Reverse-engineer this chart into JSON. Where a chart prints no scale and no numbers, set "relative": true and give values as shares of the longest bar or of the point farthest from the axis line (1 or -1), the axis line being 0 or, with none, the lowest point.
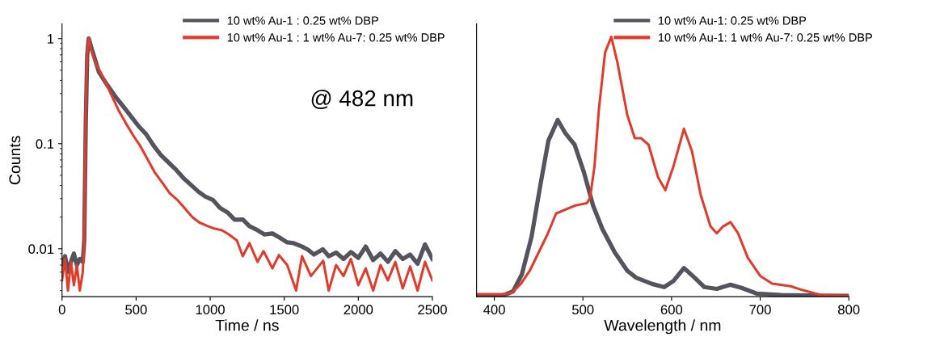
{
  "chart_data": [
    {
      "type": "line",
      "xlabel": "Time / ns",
      "ylabel": "Counts",
      "log": "y",
      "xlim": [
        0,
        2500
      ],
      "xticks": [
        0,
        500,
        1000,
        1500,
        2000,
        2500
      ],
      "ylim": [
        0.0035,
        1.38
      ],
      "yticks": [
        0.01,
        0.1,
        1
      ],
      "legend": "top right",
      "grid": false,
      "annotations": [
        "@ 482 nm"
      ],
      "series": [
        {
          "name": "10 wt% Au-1 : 0.25 wt% DBP",
          "color": "#55535e",
          "x": [
            0,
            20,
            40,
            60,
            80,
            100,
            120,
            140,
            150,
            160,
            170,
            180,
            200,
            249,
            300,
            369,
            420,
            468,
            520,
            568,
            620,
            667,
            720,
            767,
            820,
            866,
            920,
            966,
            1020,
            1066,
            1120,
            1165,
            1220,
            1265,
            1320,
            1365,
            1420,
            1464,
            1520,
            1564,
            1620,
            1660,
            1700,
            1760,
            1800,
            1850,
            1900,
            1950,
            2000,
            2050,
            2100,
            2150,
            2200,
            2250,
            2300,
            2350,
            2400,
            2450,
            2500
          ],
          "values": [
            0.007,
            0.0085,
            0.006,
            0.0075,
            0.009,
            0.007,
            0.008,
            0.0075,
            0.012,
            0.15,
            0.7,
            1.0,
            0.8,
            0.48,
            0.37,
            0.27,
            0.22,
            0.18,
            0.145,
            0.123,
            0.095,
            0.078,
            0.066,
            0.057,
            0.047,
            0.041,
            0.035,
            0.0315,
            0.029,
            0.0245,
            0.022,
            0.0189,
            0.019,
            0.0164,
            0.015,
            0.0137,
            0.014,
            0.0129,
            0.0115,
            0.0113,
            0.0105,
            0.0098,
            0.0088,
            0.0099,
            0.0085,
            0.0092,
            0.008,
            0.0093,
            0.0082,
            0.0105,
            0.0078,
            0.009,
            0.0075,
            0.0095,
            0.008,
            0.0088,
            0.0072,
            0.011,
            0.008
          ]
        },
        {
          "name": "10 wt% Au-1 : 1 wt% Au-7: 0.25 wt% DBP",
          "color": "#e03c2c",
          "x": [
            0,
            20,
            40,
            60,
            80,
            100,
            120,
            140,
            150,
            160,
            170,
            180,
            200,
            229,
            280,
            329,
            380,
            428,
            480,
            528,
            580,
            627,
            680,
            727,
            780,
            826,
            880,
            926,
            980,
            1026,
            1080,
            1125,
            1180,
            1220,
            1265,
            1320,
            1360,
            1420,
            1464,
            1520,
            1580,
            1620,
            1680,
            1763,
            1800,
            1850,
            1900,
            1950,
            2000,
            2050,
            2100,
            2150,
            2200,
            2250,
            2300,
            2350,
            2400,
            2450,
            2500
          ],
          "values": [
            0.005,
            0.008,
            0.004,
            0.0075,
            0.0045,
            0.007,
            0.004,
            0.006,
            0.012,
            0.2,
            0.75,
            1.0,
            0.75,
            0.58,
            0.42,
            0.3,
            0.21,
            0.159,
            0.12,
            0.095,
            0.07,
            0.053,
            0.042,
            0.0338,
            0.029,
            0.0245,
            0.02,
            0.0178,
            0.0165,
            0.0156,
            0.015,
            0.0137,
            0.012,
            0.0085,
            0.0113,
            0.0075,
            0.0095,
            0.0065,
            0.0087,
            0.007,
            0.004,
            0.0085,
            0.0055,
            0.0077,
            0.004,
            0.007,
            0.0055,
            0.008,
            0.0045,
            0.0065,
            0.004,
            0.007,
            0.005,
            0.0075,
            0.0042,
            0.0068,
            0.004,
            0.0075,
            0.005
          ]
        }
      ]
    },
    {
      "type": "line",
      "xlabel": "Wavelength / nm",
      "relative": true,
      "xlim": [
        380,
        800
      ],
      "xticks": [
        400,
        500,
        600,
        700,
        800
      ],
      "tick_labels": "x",
      "legend": "top right",
      "grid": false,
      "series": [
        {
          "name": "10 wt% Au-1: 0.25 wt% DBP",
          "color": "#55535e",
          "x": [
            380,
            410,
            421,
            431,
            442,
            452,
            461,
            471.5,
            480,
            490.6,
            501,
            511.5,
            522,
            536,
            550,
            560,
            578,
            591.6,
            602,
            614,
            626,
            637,
            651,
            666.5,
            679,
            696,
            724,
            800
          ],
          "values": [
            0.005,
            0.005,
            0.02,
            0.085,
            0.23,
            0.43,
            0.6,
            0.68,
            0.63,
            0.585,
            0.48,
            0.35,
            0.26,
            0.17,
            0.1,
            0.073,
            0.049,
            0.037,
            0.06,
            0.11,
            0.073,
            0.037,
            0.03,
            0.046,
            0.034,
            0.012,
            0.006,
            0.003
          ]
        },
        {
          "name": "10 wt% Au-1: 1 wt% Au-7: 0.25 wt% DBP",
          "color": "#e03c2c",
          "x": [
            380,
            410,
            420,
            430,
            440,
            450,
            460,
            469.7,
            490.6,
            504.5,
            508,
            513,
            518,
            525,
            532,
            539,
            550,
            558.5,
            565.5,
            574,
            584.7,
            593,
            602,
            614,
            623,
            633,
            644,
            651,
            658,
            666.5,
            675,
            686,
            700,
            713.6,
            734.5,
            748,
            769,
            800
          ],
          "values": [
            0.01,
            0.01,
            0.015,
            0.05,
            0.1,
            0.17,
            0.24,
            0.32,
            0.35,
            0.36,
            0.38,
            0.5,
            0.72,
            0.94,
            1.0,
            0.9,
            0.7,
            0.61,
            0.61,
            0.585,
            0.46,
            0.41,
            0.5,
            0.646,
            0.56,
            0.39,
            0.27,
            0.244,
            0.27,
            0.287,
            0.244,
            0.15,
            0.08,
            0.05,
            0.04,
            0.025,
            0.006,
            0.003
          ]
        }
      ]
    }
  ]
}
